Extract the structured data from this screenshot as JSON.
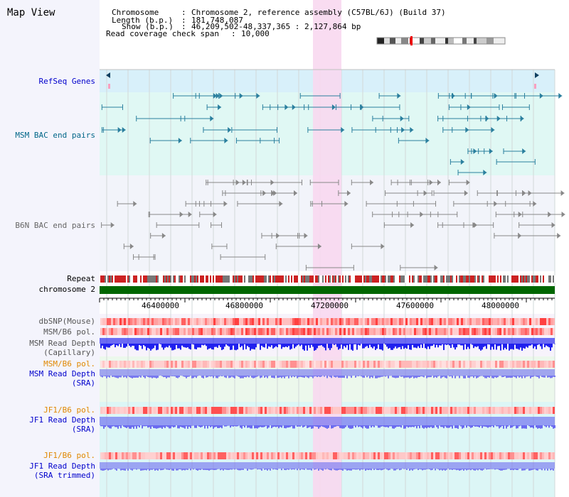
{
  "title": "Map View",
  "header": {
    "chromosome_label": "Chromosome",
    "chromosome_value": "Chromosome 2, reference assembly (C57BL/6J) (Build 37)",
    "length_label": "Length (b.p.)",
    "length_value": "181,748,087",
    "show_label": "Show (b.p.)",
    "show_value": "46,209,502-48,337,365 : 2,127,864 bp",
    "coverage_label": "Read coverage check span",
    "coverage_value": "10,000"
  },
  "tracks": {
    "refseq": "RefSeq Genes",
    "msm_bac": "MSM BAC end pairs",
    "b6n_bac": "B6N BAC end pairs",
    "repeat": "Repeat",
    "chromosome": "chromosome 2",
    "dbsnp": "dbSNP(Mouse)",
    "msm_b6_pol": "MSM/B6 pol.",
    "msm_depth_cap_1": "MSM Read Depth",
    "msm_depth_cap_2": "(Capillary)",
    "msm_b6_pol_sra": "MSM/B6 pol.",
    "msm_depth_sra_1": "MSM Read Depth",
    "msm_depth_sra_2": "(SRA)",
    "jf1_b6_pol": "JF1/B6 pol.",
    "jf1_depth_sra_1": "JF1 Read Depth",
    "jf1_depth_sra_2": "(SRA)",
    "jf1_b6_pol_trim": "JF1/B6 pol.",
    "jf1_depth_trim_1": "JF1 Read Depth",
    "jf1_depth_trim_2": "(SRA trimmed)"
  },
  "axis": {
    "ticks": [
      "46400000",
      "46800000",
      "47200000",
      "47600000",
      "48000000"
    ]
  },
  "colors": {
    "label_blue": "#0000cc",
    "label_teal": "#006688",
    "label_gray": "#666666",
    "label_orange": "#e08800",
    "highlight": "#f8d8f0",
    "refseq_bg": "#d8f0fa",
    "bac_bg": "#e0f8f4",
    "chrom_green": "#006600"
  }
}
